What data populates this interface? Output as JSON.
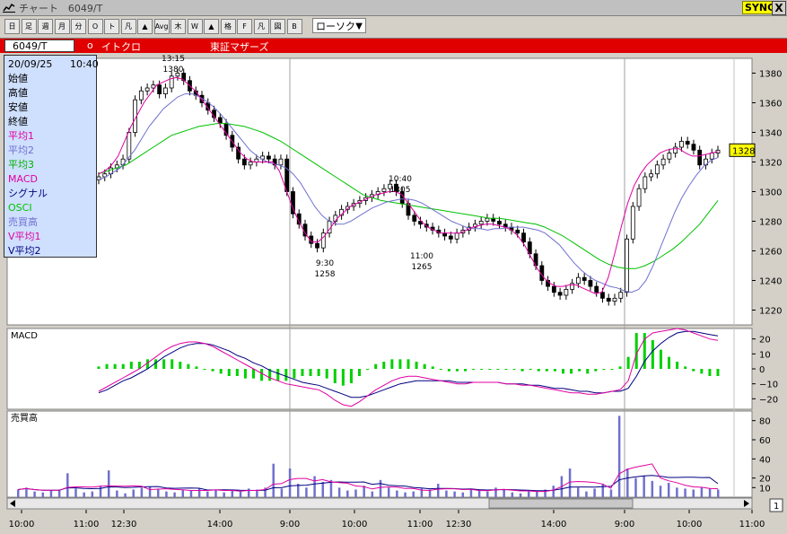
{
  "window": {
    "title": "チャート　6049/T",
    "sync_label": "SYNC",
    "close_label": "X"
  },
  "toolbar": {
    "buttons": [
      "日",
      "足",
      "週",
      "月",
      "分",
      "O",
      "ト",
      "凡",
      "▲",
      "Avg",
      "木",
      "W",
      "▲",
      "格",
      "F",
      "凡",
      "図",
      "B"
    ],
    "chart_type": "ローソク",
    "dropdown_arrow": "▼"
  },
  "symbol": {
    "code": "6049/T",
    "bullet": "o",
    "name": "イトクロ",
    "market": "東証マザーズ"
  },
  "info_panel": {
    "date": "20/09/25",
    "time": "10:40",
    "rows": [
      {
        "label": "始値",
        "color": "#000000"
      },
      {
        "label": "高値",
        "color": "#000000"
      },
      {
        "label": "安値",
        "color": "#000000"
      },
      {
        "label": "終値",
        "color": "#000000"
      },
      {
        "label": "平均1",
        "color": "#e000a0"
      },
      {
        "label": "平均2",
        "color": "#7070d0"
      },
      {
        "label": "平均3",
        "color": "#00b000"
      },
      {
        "label": "MACD",
        "color": "#e000a0"
      },
      {
        "label": "シグナル",
        "color": "#000080"
      },
      {
        "label": "OSCI",
        "color": "#00c000"
      },
      {
        "label": "売買高",
        "color": "#7070d0"
      },
      {
        "label": "V平均1",
        "color": "#e000a0"
      },
      {
        "label": "V平均2",
        "color": "#000080"
      }
    ]
  },
  "price_panel": {
    "ylim": [
      1210,
      1390
    ],
    "yticks": [
      "1380",
      "1360",
      "1340",
      "1320",
      "1300",
      "1280",
      "1260",
      "1240",
      "1220"
    ],
    "current_price": "1328",
    "annotations": [
      {
        "time": "13:15",
        "price": "1380"
      },
      {
        "time": "9:30",
        "price": "1258"
      },
      {
        "time": "10:40",
        "price": "1305"
      },
      {
        "time": "11:00",
        "price": "1265"
      }
    ]
  },
  "macd_panel": {
    "title": "MACD",
    "ylim": [
      -27,
      27
    ],
    "yticks": [
      "20",
      "10",
      "0",
      "−10",
      "−20"
    ]
  },
  "volume_panel": {
    "title": "売買高",
    "ylim": [
      0,
      90
    ],
    "yticks": [
      "80",
      "60",
      "40",
      "20",
      "10"
    ]
  },
  "x_axis": {
    "labels": [
      {
        "text": "10:00"
      },
      {
        "text": "11:00"
      },
      {
        "text": "12:30"
      },
      {
        "text": "14:00"
      },
      {
        "text": "9:00"
      },
      {
        "text": "10:00"
      },
      {
        "text": "11:00"
      },
      {
        "text": "12:30"
      },
      {
        "text": "14:00"
      },
      {
        "text": "9:00"
      },
      {
        "text": "10:00"
      },
      {
        "text": "11:00"
      }
    ]
  },
  "scroll": {
    "page_number": "1"
  },
  "chart_data": {
    "type": "candlestick",
    "x_labels": [
      "10:00",
      "11:00",
      "12:30",
      "14:00",
      "9:00",
      "10:00",
      "11:00",
      "12:30",
      "14:00",
      "9:00",
      "10:00",
      "11:00"
    ],
    "closes": [
      1310,
      1312,
      1316,
      1318,
      1322,
      1340,
      1362,
      1368,
      1370,
      1372,
      1366,
      1370,
      1378,
      1380,
      1375,
      1368,
      1365,
      1360,
      1355,
      1350,
      1346,
      1338,
      1330,
      1322,
      1318,
      1320,
      1322,
      1324,
      1322,
      1318,
      1322,
      1300,
      1285,
      1278,
      1270,
      1265,
      1262,
      1272,
      1280,
      1284,
      1288,
      1290,
      1292,
      1294,
      1296,
      1298,
      1300,
      1302,
      1305,
      1300,
      1292,
      1284,
      1280,
      1278,
      1276,
      1274,
      1272,
      1270,
      1268,
      1272,
      1274,
      1276,
      1278,
      1280,
      1282,
      1280,
      1278,
      1276,
      1274,
      1272,
      1266,
      1258,
      1250,
      1240,
      1236,
      1232,
      1230,
      1234,
      1238,
      1242,
      1240,
      1236,
      1232,
      1228,
      1226,
      1228,
      1232,
      1268,
      1290,
      1302,
      1310,
      1312,
      1318,
      1322,
      1326,
      1330,
      1334,
      1332,
      1328,
      1318,
      1322,
      1326,
      1328
    ],
    "ma1": [
      1312,
      1314,
      1318,
      1324,
      1334,
      1344,
      1352,
      1360,
      1366,
      1372,
      1374,
      1376,
      1377,
      1376,
      1372,
      1368,
      1362,
      1356,
      1350,
      1344,
      1338,
      1332,
      1326,
      1322,
      1320,
      1320,
      1320,
      1320,
      1314,
      1302,
      1290,
      1280,
      1272,
      1266,
      1266,
      1270,
      1276,
      1282,
      1286,
      1290,
      1292,
      1294,
      1296,
      1298,
      1299,
      1300,
      1300,
      1298,
      1292,
      1286,
      1280,
      1276,
      1274,
      1272,
      1272,
      1272,
      1272,
      1274,
      1276,
      1277,
      1278,
      1278,
      1277,
      1276,
      1274,
      1270,
      1264,
      1256,
      1248,
      1242,
      1238,
      1236,
      1236,
      1237,
      1237,
      1235,
      1233,
      1231,
      1232,
      1242,
      1258,
      1276,
      1292,
      1304,
      1312,
      1318,
      1322,
      1326,
      1328,
      1329,
      1329,
      1326,
      1324,
      1324,
      1325,
      1326,
      1327
    ],
    "ma2": [
      1308,
      1310,
      1313,
      1316,
      1322,
      1328,
      1336,
      1344,
      1350,
      1356,
      1360,
      1364,
      1366,
      1366,
      1364,
      1361,
      1357,
      1352,
      1346,
      1340,
      1334,
      1328,
      1324,
      1321,
      1319,
      1318,
      1316,
      1312,
      1306,
      1298,
      1290,
      1284,
      1280,
      1278,
      1278,
      1280,
      1283,
      1286,
      1289,
      1291,
      1293,
      1294,
      1295,
      1295,
      1294,
      1292,
      1289,
      1286,
      1283,
      1280,
      1278,
      1276,
      1275,
      1275,
      1274,
      1275,
      1275,
      1276,
      1276,
      1276,
      1275,
      1274,
      1272,
      1268,
      1264,
      1258,
      1252,
      1247,
      1243,
      1240,
      1238,
      1236,
      1235,
      1233,
      1232,
      1234,
      1240,
      1250,
      1262,
      1274,
      1286,
      1296,
      1304,
      1311,
      1317,
      1321,
      1323
    ],
    "ma3": [
      1312,
      1314,
      1316,
      1318,
      1322,
      1326,
      1330,
      1334,
      1338,
      1340,
      1342,
      1344,
      1345,
      1346,
      1346,
      1345,
      1344,
      1342,
      1340,
      1337,
      1334,
      1330,
      1326,
      1322,
      1318,
      1314,
      1310,
      1306,
      1302,
      1298,
      1296,
      1294,
      1293,
      1292,
      1291,
      1290,
      1289,
      1288,
      1287,
      1286,
      1285,
      1284,
      1283,
      1282,
      1282,
      1281,
      1280,
      1279,
      1278,
      1276,
      1273,
      1270,
      1266,
      1262,
      1258,
      1254,
      1251,
      1249,
      1248,
      1248,
      1250,
      1253,
      1257,
      1261,
      1266,
      1272,
      1278,
      1286,
      1294
    ],
    "macd": [
      -15,
      -12,
      -9,
      -6,
      -3,
      0,
      4,
      8,
      12,
      15,
      17,
      18,
      18,
      17,
      15,
      12,
      9,
      6,
      3,
      0,
      -3,
      -6,
      -8,
      -10,
      -11,
      -12,
      -13,
      -14,
      -17,
      -21,
      -24,
      -25,
      -22,
      -18,
      -14,
      -11,
      -8,
      -6,
      -5,
      -5,
      -6,
      -7,
      -8,
      -9,
      -10,
      -10,
      -9,
      -9,
      -9,
      -9,
      -10,
      -10,
      -11,
      -11,
      -12,
      -13,
      -14,
      -15,
      -16,
      -16,
      -17,
      -17,
      -16,
      -15,
      -14,
      -8,
      10,
      20,
      24,
      25,
      26,
      27,
      26,
      24,
      22,
      20,
      19
    ],
    "signal": [
      -16,
      -14,
      -11,
      -8,
      -6,
      -3,
      0,
      4,
      8,
      11,
      14,
      16,
      17,
      17,
      16,
      14,
      12,
      9,
      7,
      4,
      2,
      -1,
      -3,
      -5,
      -7,
      -9,
      -10,
      -11,
      -13,
      -15,
      -17,
      -19,
      -19,
      -18,
      -16,
      -14,
      -12,
      -10,
      -9,
      -8,
      -8,
      -8,
      -8,
      -8,
      -9,
      -9,
      -9,
      -9,
      -9,
      -9,
      -10,
      -10,
      -10,
      -11,
      -11,
      -12,
      -13,
      -13,
      -14,
      -15,
      -15,
      -16,
      -16,
      -15,
      -15,
      -13,
      -5,
      5,
      12,
      17,
      21,
      24,
      25,
      25,
      24,
      23,
      22
    ],
    "volume": [
      8,
      10,
      6,
      5,
      7,
      8,
      25,
      9,
      5,
      6,
      12,
      28,
      7,
      4,
      8,
      10,
      11,
      9,
      6,
      5,
      8,
      7,
      9,
      6,
      8,
      5,
      7,
      6,
      9,
      8,
      10,
      35,
      9,
      30,
      14,
      10,
      22,
      16,
      18,
      10,
      7,
      8,
      12,
      6,
      18,
      10,
      7,
      5,
      6,
      9,
      8,
      14,
      7,
      6,
      5,
      9,
      8,
      6,
      10,
      8,
      5,
      4,
      6,
      7,
      8,
      12,
      22,
      30,
      10,
      6,
      9,
      14,
      8,
      85,
      30,
      20,
      22,
      17,
      12,
      15,
      10,
      9,
      8,
      10,
      9,
      8
    ]
  }
}
